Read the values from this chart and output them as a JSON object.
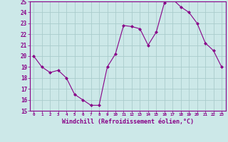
{
  "x": [
    0,
    1,
    2,
    3,
    4,
    5,
    6,
    7,
    8,
    9,
    10,
    11,
    12,
    13,
    14,
    15,
    16,
    17,
    18,
    19,
    20,
    21,
    22,
    23
  ],
  "y": [
    20.0,
    19.0,
    18.5,
    18.7,
    18.0,
    16.5,
    16.0,
    15.5,
    15.5,
    19.0,
    20.2,
    22.8,
    22.7,
    22.5,
    21.0,
    22.2,
    24.9,
    25.2,
    24.5,
    24.0,
    23.0,
    21.2,
    20.5,
    19.0
  ],
  "line_color": "#880088",
  "marker_color": "#880088",
  "bg_color": "#cce8e8",
  "grid_color": "#aacccc",
  "axis_label_color": "#880088",
  "tick_color": "#880088",
  "xlabel": "Windchill (Refroidissement éolien,°C)",
  "ylim": [
    15,
    25
  ],
  "xlim": [
    -0.5,
    23.5
  ],
  "yticks": [
    15,
    16,
    17,
    18,
    19,
    20,
    21,
    22,
    23,
    24,
    25
  ],
  "xticks": [
    0,
    1,
    2,
    3,
    4,
    5,
    6,
    7,
    8,
    9,
    10,
    11,
    12,
    13,
    14,
    15,
    16,
    17,
    18,
    19,
    20,
    21,
    22,
    23
  ]
}
